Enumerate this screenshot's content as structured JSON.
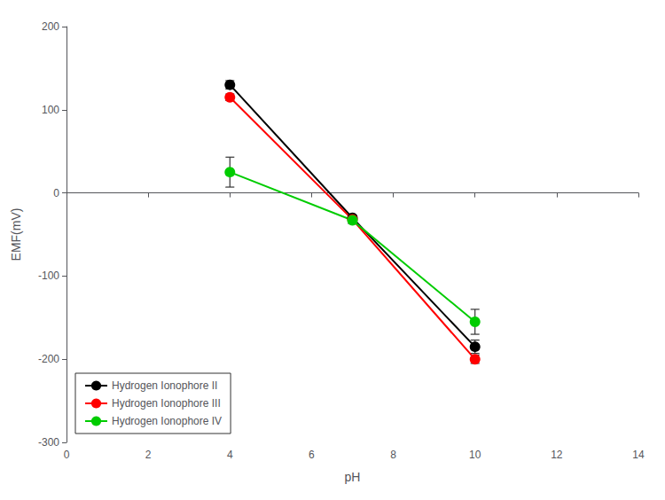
{
  "chart_data": {
    "type": "line",
    "xlabel": "pH",
    "ylabel": "EMF(mV)",
    "x": [
      4,
      7,
      10
    ],
    "series": [
      {
        "name": "Hydrogen Ionophore II",
        "color": "#000000",
        "values": [
          130,
          -30,
          -185
        ],
        "yerr": [
          5,
          3,
          8
        ]
      },
      {
        "name": "Hydrogen Ionophore III",
        "color": "#ff0000",
        "values": [
          115,
          -32,
          -200
        ],
        "yerr": [
          4,
          3,
          5
        ]
      },
      {
        "name": "Hydrogen Ionophore IV",
        "color": "#00cc00",
        "values": [
          25,
          -33,
          -155
        ],
        "yerr": [
          18,
          4,
          15
        ]
      }
    ],
    "xlim": [
      0,
      14
    ],
    "xticks": [
      0,
      2,
      4,
      6,
      8,
      10,
      12,
      14
    ],
    "ylim": [
      -300,
      200
    ],
    "yticks": [
      -300,
      -200,
      -100,
      0,
      100,
      200
    ],
    "marker": "circle",
    "legend": "lower left",
    "grid": false
  }
}
